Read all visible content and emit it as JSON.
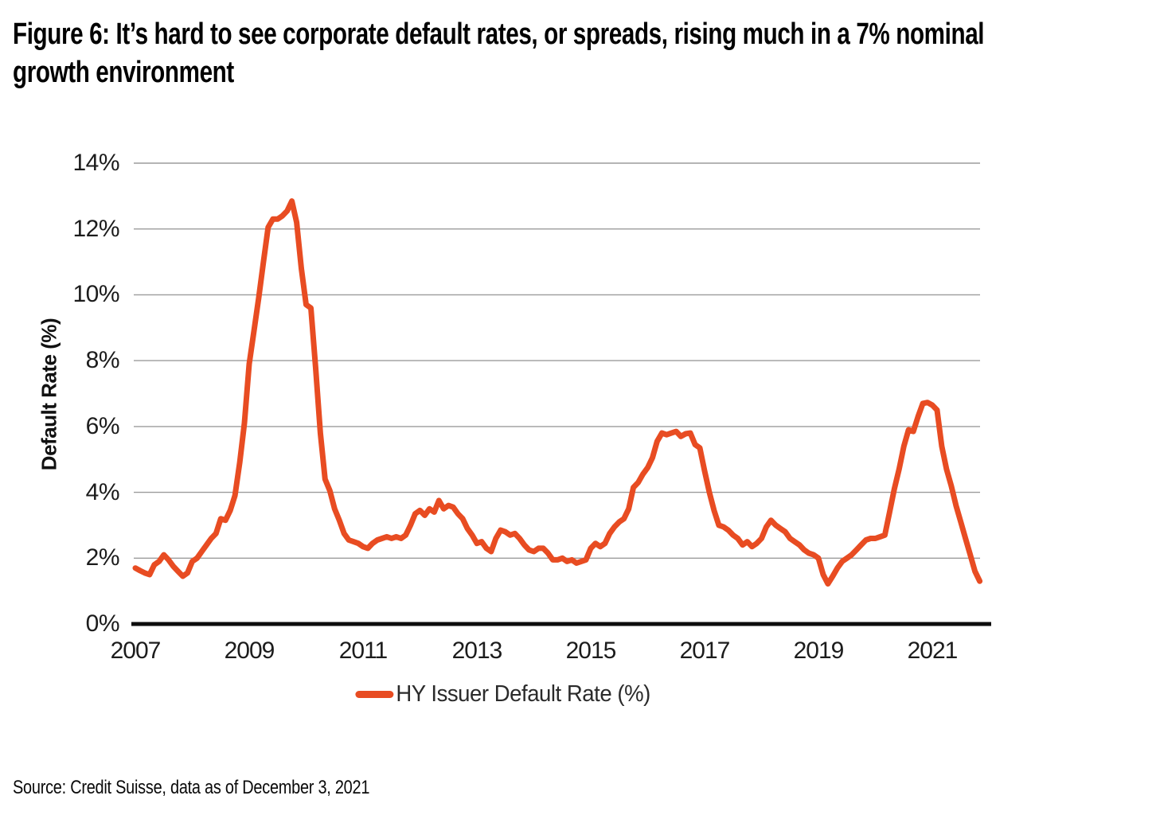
{
  "figure": {
    "title_line1": "Figure 6: It’s hard to see corporate default rates, or spreads, rising much in a 7% nominal",
    "title_line2": "growth environment"
  },
  "source": "Source: Credit Suisse, data as of December 3, 2021",
  "chart_data": {
    "type": "line",
    "title": "Figure 6: It’s hard to see corporate default rates, or spreads, rising much in a 7% nominal growth environment",
    "xlabel": "",
    "ylabel": "Default Rate (%)",
    "x_start": "2007-01",
    "x_frequency": "monthly",
    "x_tick_labels": [
      "2007",
      "2009",
      "2011",
      "2013",
      "2015",
      "2017",
      "2019",
      "2021"
    ],
    "y_tick_labels": [
      "0%",
      "2%",
      "4%",
      "6%",
      "8%",
      "10%",
      "12%",
      "14%"
    ],
    "ylim": [
      0,
      14
    ],
    "xlim_years": [
      2007,
      2022
    ],
    "grid": "horizontal",
    "legend_position": "bottom",
    "line_color": "#e84c22",
    "gridline_color": "#9c9c9c",
    "axis_color": "#0d0d0d",
    "series": [
      {
        "name": "HY Issuer Default Rate (%)",
        "values": [
          1.7,
          1.62,
          1.55,
          1.5,
          1.8,
          1.9,
          2.1,
          1.95,
          1.75,
          1.6,
          1.45,
          1.55,
          1.9,
          2.0,
          2.2,
          2.4,
          2.6,
          2.75,
          3.2,
          3.15,
          3.45,
          3.9,
          4.9,
          6.1,
          7.9,
          8.9,
          9.9,
          11.0,
          12.05,
          12.3,
          12.3,
          12.4,
          12.55,
          12.85,
          12.2,
          10.8,
          9.7,
          9.6,
          7.8,
          5.8,
          4.4,
          4.05,
          3.5,
          3.15,
          2.75,
          2.55,
          2.5,
          2.45,
          2.35,
          2.3,
          2.45,
          2.55,
          2.6,
          2.65,
          2.6,
          2.65,
          2.6,
          2.7,
          3.0,
          3.35,
          3.45,
          3.3,
          3.5,
          3.4,
          3.75,
          3.5,
          3.6,
          3.55,
          3.35,
          3.2,
          2.9,
          2.7,
          2.45,
          2.5,
          2.3,
          2.2,
          2.6,
          2.85,
          2.8,
          2.7,
          2.75,
          2.6,
          2.4,
          2.25,
          2.2,
          2.3,
          2.3,
          2.15,
          1.95,
          1.95,
          2.0,
          1.9,
          1.95,
          1.85,
          1.9,
          1.95,
          2.3,
          2.45,
          2.35,
          2.45,
          2.75,
          2.95,
          3.1,
          3.2,
          3.5,
          4.15,
          4.3,
          4.55,
          4.75,
          5.05,
          5.55,
          5.8,
          5.75,
          5.8,
          5.85,
          5.7,
          5.78,
          5.8,
          5.45,
          5.35,
          4.65,
          4.0,
          3.45,
          3.0,
          2.95,
          2.85,
          2.7,
          2.6,
          2.4,
          2.5,
          2.35,
          2.45,
          2.6,
          2.95,
          3.15,
          3.0,
          2.9,
          2.8,
          2.6,
          2.5,
          2.4,
          2.25,
          2.15,
          2.1,
          2.0,
          1.5,
          1.22,
          1.45,
          1.7,
          1.9,
          2.0,
          2.1,
          2.25,
          2.4,
          2.55,
          2.6,
          2.6,
          2.65,
          2.7,
          3.4,
          4.1,
          4.7,
          5.4,
          5.9,
          5.85,
          6.3,
          6.7,
          6.73,
          6.65,
          6.5,
          5.4,
          4.7,
          4.2,
          3.6,
          3.1,
          2.6,
          2.1,
          1.6,
          1.3
        ]
      }
    ]
  }
}
